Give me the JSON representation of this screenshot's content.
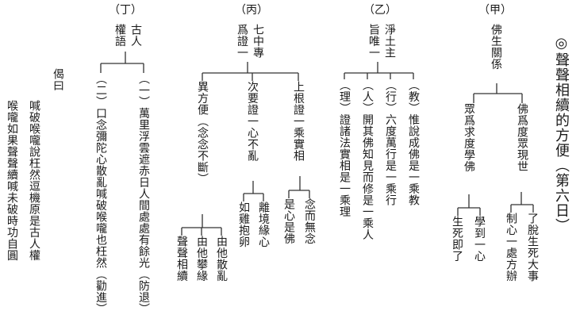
{
  "title": "◎聲聲相續的方便（第六日）",
  "jia": {
    "label": "（甲）",
    "root": "佛生關係",
    "left": "眾爲求度學佛",
    "left_a": "學到一心",
    "left_b": "生死即了",
    "right": "佛爲度眾現世",
    "right_a": "了脫生死大事",
    "right_b": "制心一處方辦"
  },
  "yi": {
    "label": "（乙）",
    "root_a": "淨土主",
    "root_b": "旨唯一",
    "b1": "（教）惟說成佛是一乘教",
    "b2": "（行）六度萬行是一乘行",
    "b3": "（人）開其佛知見而修是一乘人",
    "b4": "（理）證諸法實相是一乘理"
  },
  "bing": {
    "label": "（丙）",
    "root_a": "七中專",
    "root_b": "爲證一",
    "c1": "上根證一乘實相",
    "c1_a": "念而無念",
    "c1_b": "是心是佛",
    "c2": "次要證一心不亂",
    "c2_a": "離境緣心",
    "c2_b": "如雞抱卵",
    "c3": "異方便（念念不斷）",
    "c3_a": "由他散亂",
    "c3_b": "由他攀緣",
    "c3_c": "聲聲相續"
  },
  "ding": {
    "label": "（丁）",
    "root_a": "古人",
    "root_b": "權語",
    "d1": "（一）萬里浮雲遮赤日人間處處有餘光（防退）",
    "d2": "（二）口念彌陀心散亂喊破喉嚨也枉然（勸進）"
  },
  "verse": {
    "header": "偈曰",
    "line1": "喊破喉嚨說枉然逗機原是古人權",
    "line2": "喉嚨如果聲聲續喊未破時功自圓"
  }
}
